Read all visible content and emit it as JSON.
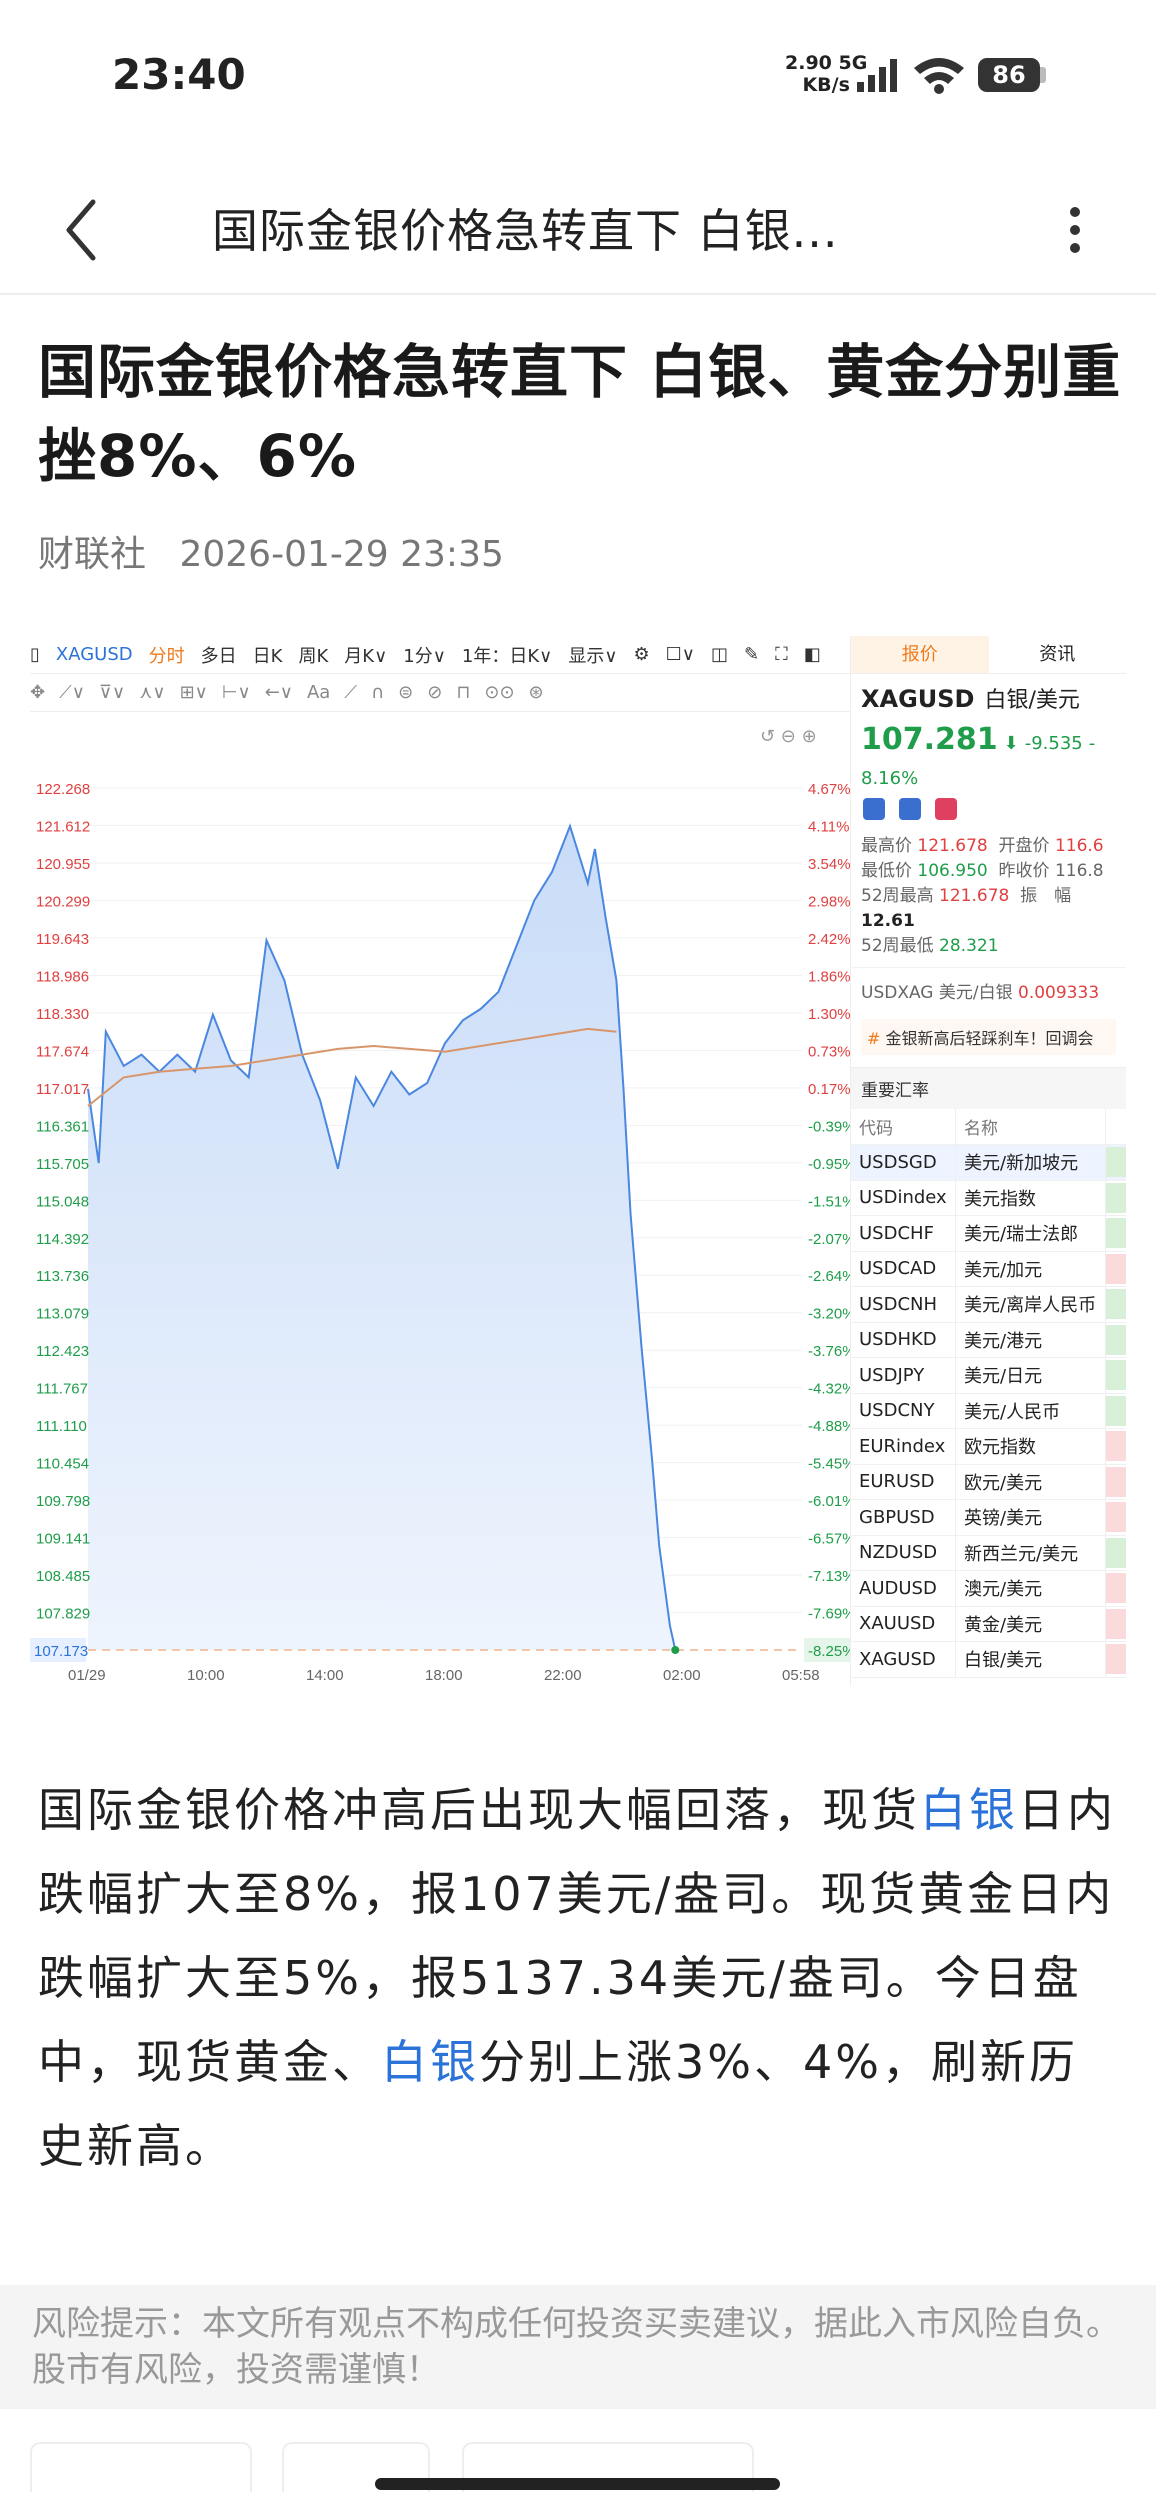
{
  "status_bar": {
    "time": "23:40",
    "net_speed": "2.90",
    "net_unit": "KB/s",
    "net_type": "5G",
    "battery": "86"
  },
  "nav": {
    "title": "国际金银价格急转直下 白银..."
  },
  "article": {
    "headline": "国际金银价格急转直下 白银、黄金分别重挫8%、6%",
    "source": "财联社",
    "datetime": "2026-01-29 23:35",
    "body": {
      "p1": "国际金银价格冲高后出现大幅回落，现货",
      "link1": "白银",
      "p2": "日内跌幅扩大至8%，报107美元/盎司。现货黄金日内跌幅扩大至5%，报5137.34美元/盎司。今日盘中，现货黄金、",
      "link2": "白银",
      "p3": "分别上涨3%、4%，刷新历史新高。"
    }
  },
  "chart_toolbar": {
    "symbol": "XAGUSD",
    "items": [
      "分时",
      "多日",
      "日K",
      "周K",
      "月K∨",
      "1分∨",
      "1年：日K∨",
      "显示∨"
    ],
    "active": "分时",
    "draw_tools": [
      "✥",
      "⟋∨",
      "⊽∨",
      "⋏∨",
      "⊞∨",
      "⊢∨",
      "←∨",
      "Aa",
      "⟋",
      "∩",
      "⊜",
      "⊘",
      "⊓",
      "⊙⊙",
      "⊛"
    ]
  },
  "chart_data": {
    "type": "area",
    "symbol": "XAGUSD",
    "x_ticks": [
      "01/29",
      "10:00",
      "14:00",
      "18:00",
      "22:00",
      "02:00",
      "05:58"
    ],
    "y_ticks": [
      122.268,
      121.612,
      120.955,
      120.299,
      119.643,
      118.986,
      118.33,
      117.674,
      117.017,
      116.361,
      115.705,
      115.048,
      114.392,
      113.736,
      113.079,
      112.423,
      111.767,
      111.11,
      110.454,
      109.798,
      109.141,
      108.485,
      107.829
    ],
    "y_ticks_pct": [
      "4.67%",
      "4.11%",
      "3.54%",
      "2.98%",
      "2.42%",
      "1.86%",
      "1.30%",
      "0.73%",
      "0.17%",
      "-0.39%",
      "-0.95%",
      "-1.51%",
      "-2.07%",
      "-2.64%",
      "-3.20%",
      "-3.76%",
      "-4.32%",
      "-4.88%",
      "-5.45%",
      "-6.01%",
      "-6.57%",
      "-7.13%",
      "-7.69%"
    ],
    "last_price_label": "107.173",
    "last_pct_label": "-8.25%",
    "ylim": [
      107.173,
      122.268
    ],
    "series": [
      {
        "kind": "price",
        "color": "#4a87e0",
        "x": [
          0,
          0.3,
          0.5,
          1.0,
          1.5,
          2.0,
          2.5,
          3.0,
          3.5,
          4.0,
          4.5,
          5.0,
          5.5,
          6.0,
          6.5,
          7.0,
          7.5,
          8.0,
          8.5,
          9.0,
          9.5,
          10.0,
          10.5,
          11.0,
          11.5,
          12.0,
          12.5,
          13.0,
          13.5,
          14.0,
          14.2,
          14.5,
          14.8,
          15.0,
          15.2,
          15.5,
          15.8,
          16.0,
          16.3,
          16.45
        ],
        "y": [
          117.0,
          115.7,
          118.0,
          117.4,
          117.6,
          117.3,
          117.6,
          117.3,
          118.3,
          117.5,
          117.2,
          119.6,
          118.9,
          117.6,
          116.8,
          115.6,
          117.2,
          116.7,
          117.3,
          116.9,
          117.1,
          117.8,
          118.2,
          118.4,
          118.7,
          119.5,
          120.3,
          120.8,
          121.6,
          120.6,
          121.2,
          120.0,
          118.9,
          117.0,
          114.8,
          112.5,
          110.5,
          109.0,
          107.6,
          107.173
        ]
      },
      {
        "kind": "average",
        "color": "#d9956a",
        "x": [
          0,
          1,
          2,
          3,
          4,
          5,
          6,
          7,
          8,
          9,
          10,
          11,
          12,
          13,
          14,
          14.8
        ],
        "y": [
          116.7,
          117.2,
          117.3,
          117.35,
          117.4,
          117.5,
          117.6,
          117.7,
          117.75,
          117.7,
          117.65,
          117.75,
          117.85,
          117.95,
          118.05,
          118.0
        ]
      }
    ]
  },
  "side_panel": {
    "tabs": [
      "报价",
      "资讯"
    ],
    "active_tab": "报价",
    "symbol": "XAGUSD",
    "name": "白银/美元",
    "price": "107.281",
    "change": "-9.535",
    "change_pct": "-8.16%",
    "stats": [
      {
        "label": "最高价",
        "value": "121.678",
        "label2": "开盘价",
        "value2": "116.6"
      },
      {
        "label": "最低价",
        "value": "106.950",
        "label2": "昨收价",
        "value2": "116.8"
      },
      {
        "label": "52周最高",
        "value": "121.678",
        "label2": "振　幅",
        "value2": "12.61"
      },
      {
        "label": "52周最低",
        "value": "28.321"
      }
    ],
    "conversion": {
      "pair": "USDXAG 美元/白银",
      "value": "0.009333"
    },
    "promo": "金银新高后轻踩刹车！回调会",
    "fx_section": "重要汇率",
    "fx_headers": [
      "代码",
      "名称"
    ],
    "fx_rows": [
      {
        "code": "USDSGD",
        "name": "美元/新加坡元",
        "mark": "#d8f0d8",
        "blue": false
      },
      {
        "code": "USDindex",
        "name": "美元指数",
        "mark": "#d8f0d8",
        "blue": true
      },
      {
        "code": "USDCHF",
        "name": "美元/瑞士法郎",
        "mark": "#d8f0d8",
        "blue": false
      },
      {
        "code": "USDCAD",
        "name": "美元/加元",
        "mark": "#fadada",
        "blue": false
      },
      {
        "code": "USDCNH",
        "name": "美元/离岸人民币",
        "mark": "#d8f0d8",
        "blue": true
      },
      {
        "code": "USDHKD",
        "name": "美元/港元",
        "mark": "#d8f0d8",
        "blue": false
      },
      {
        "code": "USDJPY",
        "name": "美元/日元",
        "mark": "#d8f0d8",
        "blue": false
      },
      {
        "code": "USDCNY",
        "name": "美元/人民币",
        "mark": "#d8f0d8",
        "blue": false
      },
      {
        "code": "EURindex",
        "name": "欧元指数",
        "mark": "#fadada",
        "blue": false
      },
      {
        "code": "EURUSD",
        "name": "欧元/美元",
        "mark": "#fadada",
        "blue": false
      },
      {
        "code": "GBPUSD",
        "name": "英镑/美元",
        "mark": "#fadada",
        "blue": false
      },
      {
        "code": "NZDUSD",
        "name": "新西兰元/美元",
        "mark": "#d8f0d8",
        "blue": false
      },
      {
        "code": "AUDUSD",
        "name": "澳元/美元",
        "mark": "#fadada",
        "blue": false
      },
      {
        "code": "XAUUSD",
        "name": "黄金/美元",
        "mark": "#fadada",
        "blue": true
      },
      {
        "code": "XAGUSD",
        "name": "白银/美元",
        "mark": "#fadada",
        "blue": true
      }
    ]
  },
  "risk_notice": "风险提示：本文所有观点不构成任何投资买卖建议，据此入市风险自负。股市有风险，投资需谨慎！",
  "colors": {
    "accent_blue": "#2b73d9",
    "up_red": "#e04040",
    "down_green": "#1f9d4a",
    "active_orange": "#f07a1a"
  }
}
